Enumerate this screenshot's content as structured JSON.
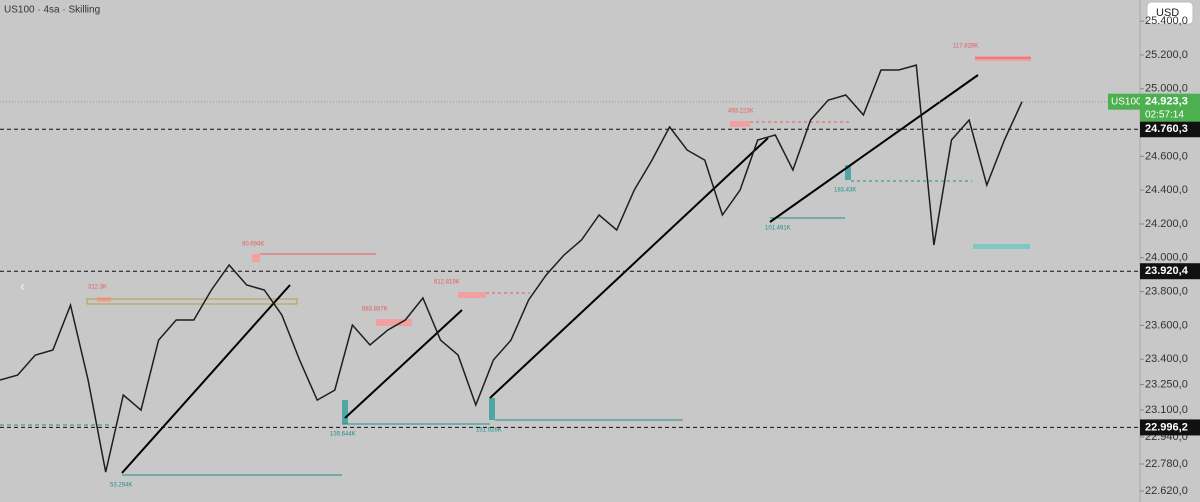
{
  "header": {
    "title": "US100 · 4sa · Skilling",
    "currency": "USD"
  },
  "chart_data": {
    "type": "line",
    "color": "#1e1e1e",
    "values": [
      23277,
      23306,
      23424,
      23454,
      23720,
      23277,
      22732,
      23188,
      23099,
      23513,
      23632,
      23632,
      23809,
      23957,
      23839,
      23809,
      23661,
      23395,
      23158,
      23217,
      23602,
      23484,
      23572,
      23632,
      23762,
      23513,
      23424,
      23129,
      23395,
      23513,
      23750,
      23898,
      24016,
      24105,
      24253,
      24164,
      24401,
      24578,
      24774,
      24637,
      24578,
      24253,
      24401,
      24697,
      24726,
      24519,
      24815,
      24933,
      24963,
      24845,
      25111,
      25111,
      25140,
      24075,
      24697,
      24815,
      24430,
      24697,
      24923
    ],
    "ylim": [
      22555,
      25525
    ],
    "yticks": [
      {
        "value": 25400,
        "label": "25.400,0"
      },
      {
        "value": 25200,
        "label": "25.200,0"
      },
      {
        "value": 25000,
        "label": "25.000,0"
      },
      {
        "value": 24600,
        "label": "24.600,0"
      },
      {
        "value": 24400,
        "label": "24.400,0"
      },
      {
        "value": 24200,
        "label": "24.200,0"
      },
      {
        "value": 24000,
        "label": "24.000,0"
      },
      {
        "value": 23800,
        "label": "23.800,0"
      },
      {
        "value": 23600,
        "label": "23.600,0"
      },
      {
        "value": 23400,
        "label": "23.400,0"
      },
      {
        "value": 23250,
        "label": "23.250,0"
      },
      {
        "value": 23100,
        "label": "23.100,0"
      },
      {
        "value": 22940,
        "label": "22.940,0"
      },
      {
        "value": 22780,
        "label": "22.780,0"
      },
      {
        "value": 22620,
        "label": "22.620,0"
      }
    ],
    "levels": [
      {
        "value": 24760.3,
        "label": "24.760,3"
      },
      {
        "value": 23920.4,
        "label": "23.920,4"
      },
      {
        "value": 22996.2,
        "label": "22.996,2"
      }
    ],
    "current": {
      "name": "US100",
      "value": 24923.3,
      "label": "24.923,3",
      "countdown": "02:57:14",
      "color": "#4caf50"
    },
    "annotations": [
      "117.828K",
      "493.223K",
      "183.43K",
      "101.491K",
      "90.694K",
      "312.3K",
      "883.887K",
      "612.819K",
      "139.644K",
      "151.926K",
      "53.294K"
    ]
  }
}
